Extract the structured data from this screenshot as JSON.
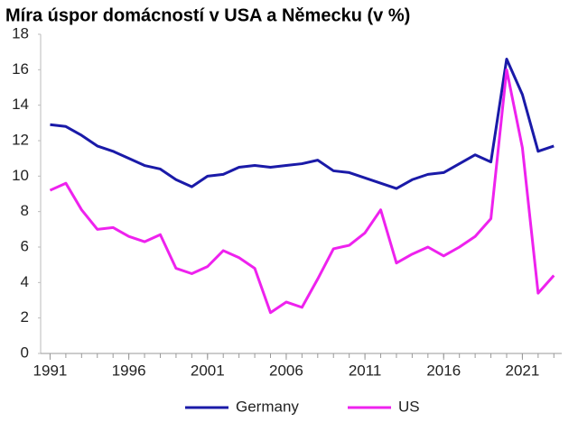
{
  "chart_data": {
    "type": "line",
    "title": "Míra úspor domácností v USA a Německu (v %)",
    "x": [
      1991,
      1992,
      1993,
      1994,
      1995,
      1996,
      1997,
      1998,
      1999,
      2000,
      2001,
      2002,
      2003,
      2004,
      2005,
      2006,
      2007,
      2008,
      2009,
      2010,
      2011,
      2012,
      2013,
      2014,
      2015,
      2016,
      2017,
      2018,
      2019,
      2020,
      2021,
      2022,
      2023
    ],
    "series": [
      {
        "name": "Germany",
        "color": "#1a1aa8",
        "values": [
          12.9,
          12.8,
          12.3,
          11.7,
          11.4,
          11.0,
          10.6,
          10.4,
          9.8,
          9.4,
          10.0,
          10.1,
          10.5,
          10.6,
          10.5,
          10.6,
          10.7,
          10.9,
          10.3,
          10.2,
          9.9,
          9.6,
          9.3,
          9.8,
          10.1,
          10.2,
          10.7,
          11.2,
          10.8,
          16.6,
          14.6,
          11.4,
          11.7
        ]
      },
      {
        "name": "US",
        "color": "#ee22ee",
        "values": [
          9.2,
          9.6,
          8.1,
          7.0,
          7.1,
          6.6,
          6.3,
          6.7,
          4.8,
          4.5,
          4.9,
          5.8,
          5.4,
          4.8,
          2.3,
          2.9,
          2.6,
          4.2,
          5.9,
          6.1,
          6.8,
          8.1,
          5.1,
          5.6,
          6.0,
          5.5,
          6.0,
          6.6,
          7.6,
          16.0,
          11.6,
          3.4,
          4.4
        ]
      }
    ],
    "xlim": [
      1990.4,
      2023.5
    ],
    "xticks": [
      1991,
      1996,
      2001,
      2006,
      2011,
      2016,
      2021
    ],
    "ylim": [
      0,
      18
    ],
    "yticks": [
      0,
      2,
      4,
      6,
      8,
      10,
      12,
      14,
      16,
      18
    ],
    "grid": false,
    "legend": "bottom"
  }
}
